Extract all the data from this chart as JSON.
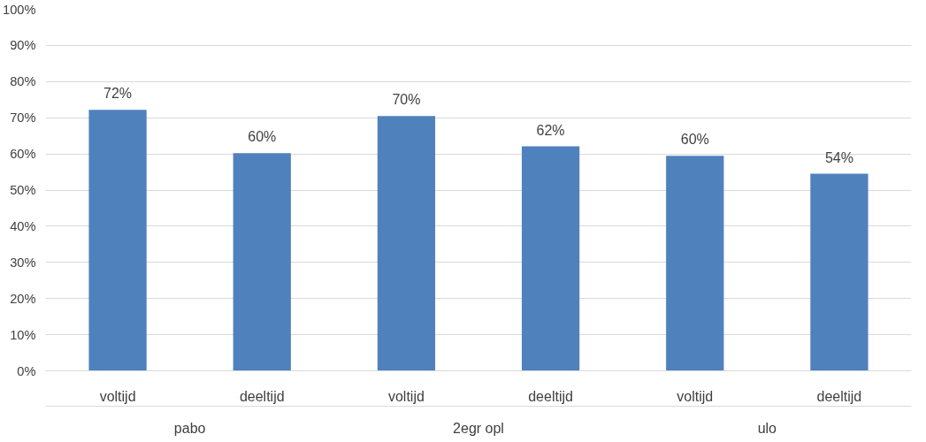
{
  "chart_data": {
    "type": "bar",
    "categories": [
      "voltijd",
      "deeltijd",
      "voltijd",
      "deeltijd",
      "voltijd",
      "deeltijd"
    ],
    "values": [
      72.2,
      60.2,
      70.5,
      62.1,
      59.5,
      54.5
    ],
    "value_labels": [
      "72%",
      "60%",
      "70%",
      "62%",
      "60%",
      "54%"
    ],
    "color": "#4f81bd",
    "annotations": [
      "pabo",
      "2egr opl",
      "ulo"
    ],
    "ylim": [
      0,
      100
    ],
    "yticks": [
      {
        "value": 0,
        "label": "0%"
      },
      {
        "value": 10,
        "label": "10%"
      },
      {
        "value": 20,
        "label": "20%"
      },
      {
        "value": 30,
        "label": "30%"
      },
      {
        "value": 40,
        "label": "40%"
      },
      {
        "value": 50,
        "label": "50%"
      },
      {
        "value": 60,
        "label": "60%"
      },
      {
        "value": 70,
        "label": "70%"
      },
      {
        "value": 80,
        "label": "80%"
      },
      {
        "value": 90,
        "label": "90%"
      },
      {
        "value": 100,
        "label": "100%"
      }
    ],
    "grid": "y"
  }
}
